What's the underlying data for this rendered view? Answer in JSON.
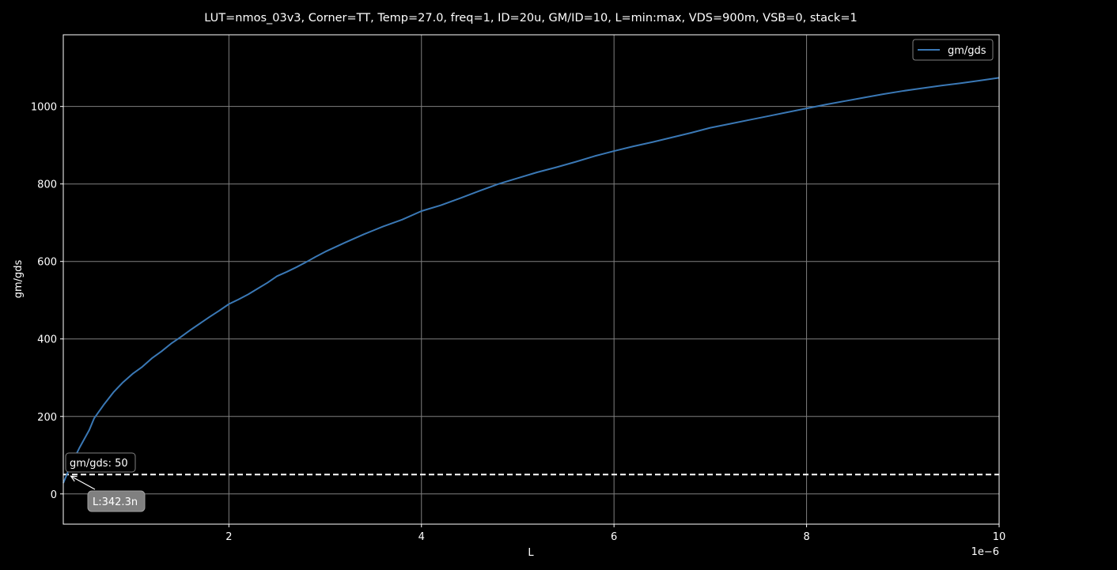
{
  "chart_data": {
    "type": "line",
    "title": "LUT=nmos_03v3, Corner=TT, Temp=27.0, freq=1, ID=20u, GM/ID=10, L=min:max, VDS=900m, VSB=0, stack=1",
    "xlabel": "L",
    "ylabel": "gm/gds",
    "x_offset_label": "1e−6",
    "xlim": [
      0.28,
      10.0
    ],
    "ylim": [
      -78,
      1185
    ],
    "x_ticks": [
      2,
      4,
      6,
      8,
      10
    ],
    "x_tick_labels": [
      "2",
      "4",
      "6",
      "8",
      "10"
    ],
    "y_ticks": [
      0,
      200,
      400,
      600,
      800,
      1000
    ],
    "y_tick_labels": [
      "0",
      "200",
      "400",
      "600",
      "800",
      "1000"
    ],
    "grid": true,
    "legend_position": "top-right",
    "colors": {
      "background": "#000000",
      "series": "#3a78b5",
      "grid": "#808080",
      "text": "#ffffff",
      "annotation_box": "#808080"
    },
    "series": [
      {
        "name": "gm/gds",
        "x": [
          0.28,
          0.35,
          0.45,
          0.55,
          0.6,
          0.7,
          0.8,
          0.9,
          1.0,
          1.1,
          1.2,
          1.3,
          1.4,
          1.5,
          1.6,
          1.7,
          1.8,
          1.9,
          2.0,
          2.1,
          2.2,
          2.3,
          2.4,
          2.5,
          2.6,
          2.7,
          2.8,
          2.9,
          3.0,
          3.2,
          3.4,
          3.5,
          3.6,
          3.8,
          4.0,
          4.2,
          4.4,
          4.6,
          4.8,
          5.0,
          5.2,
          5.4,
          5.6,
          5.8,
          6.0,
          6.2,
          6.4,
          6.6,
          6.8,
          7.0,
          7.2,
          7.4,
          7.6,
          7.8,
          8.0,
          8.2,
          8.4,
          8.6,
          8.8,
          9.0,
          9.2,
          9.4,
          9.6,
          9.8,
          10.0
        ],
        "y": [
          28,
          70,
          120,
          165,
          195,
          230,
          262,
          288,
          310,
          328,
          350,
          368,
          388,
          405,
          423,
          440,
          457,
          473,
          490,
          502,
          515,
          530,
          545,
          562,
          573,
          585,
          598,
          612,
          625,
          648,
          670,
          680,
          690,
          708,
          730,
          745,
          763,
          782,
          800,
          815,
          830,
          843,
          857,
          872,
          885,
          897,
          908,
          920,
          932,
          945,
          955,
          965,
          975,
          985,
          995,
          1005,
          1014,
          1023,
          1032,
          1040,
          1047,
          1054,
          1060,
          1067,
          1074
        ]
      }
    ],
    "reference_line": {
      "y": 50,
      "style": "dashed"
    },
    "annotations": {
      "hline_label": "gm/gds: 50",
      "point_label": "L:342.3n",
      "point": {
        "x": 0.3423,
        "y": 50
      }
    }
  }
}
